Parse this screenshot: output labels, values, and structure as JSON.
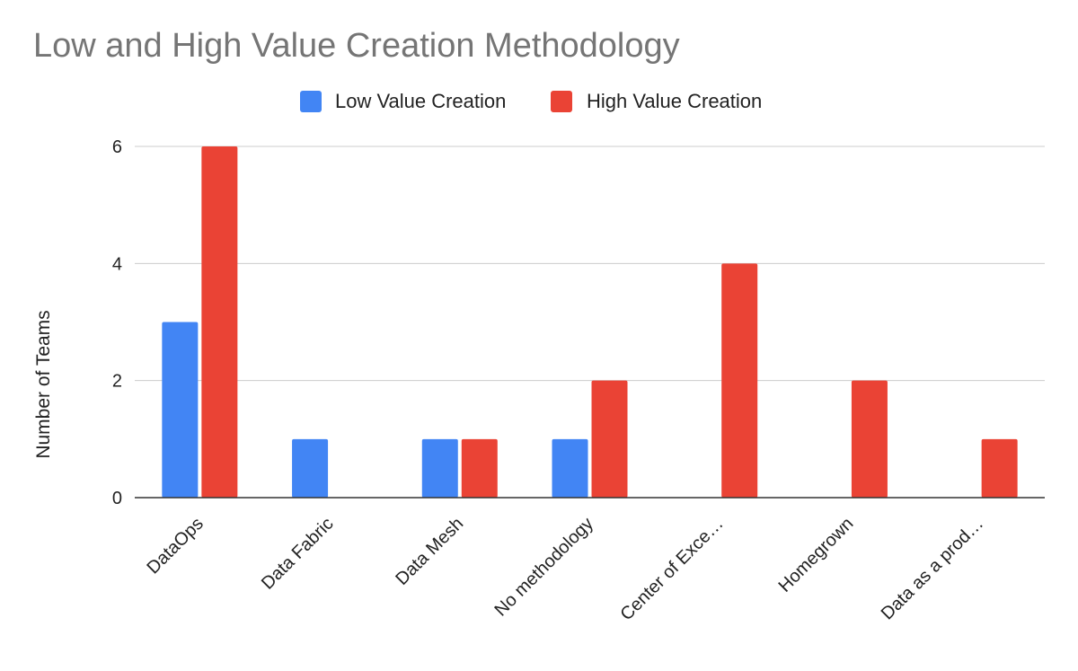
{
  "chart_data": {
    "type": "bar",
    "title": "Low and High Value Creation Methodology",
    "xlabel": "",
    "ylabel": "Number of Teams",
    "ylim": [
      0,
      6
    ],
    "yticks": [
      0,
      2,
      4,
      6
    ],
    "grid": true,
    "legend_position": "top",
    "categories": [
      "DataOps",
      "Data Fabric",
      "Data Mesh",
      "No methodology",
      "Center of Exce…",
      "Homegrown",
      "Data as a prod…"
    ],
    "series": [
      {
        "name": "Low Value Creation",
        "color": "#4285f4",
        "values": [
          3,
          1,
          1,
          1,
          0,
          0,
          0
        ]
      },
      {
        "name": "High Value Creation",
        "color": "#ea4335",
        "values": [
          6,
          0,
          1,
          2,
          4,
          2,
          1
        ]
      }
    ]
  }
}
